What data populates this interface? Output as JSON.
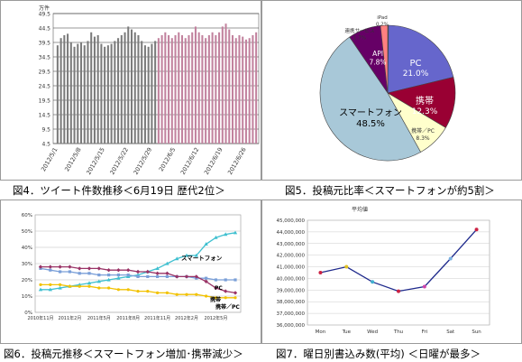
{
  "captions": [
    "図4．ツイート件数推移＜6月19日 歴代2位＞",
    "図5．投稿元比率＜スマートフォンが約5割＞",
    "図6．投稿元推移＜スマートフォン増加･携帯減少＞",
    "図7．曜日別書込み数(平均) ＜日曜が最多＞"
  ],
  "chart_data": [
    {
      "type": "bar",
      "title": "",
      "ylabel": "万件",
      "ylim": [
        4.5,
        49.5
      ],
      "yticks": [
        "49.5",
        "44.5",
        "39.5",
        "34.5",
        "29.5",
        "24.5",
        "19.5",
        "14.5",
        "9.5",
        "4.5"
      ],
      "xtick_labels": [
        "2012/5/1",
        "2012/5/8",
        "2012/5/15",
        "2012/5/22",
        "2012/5/29",
        "2012/6/5",
        "2012/6/12",
        "2012/6/19",
        "2012/6/26"
      ],
      "grid": true,
      "series": [
        {
          "color": "#7b7b7b",
          "values": [
            38.5,
            41,
            42,
            42.5,
            39.5,
            38,
            39,
            39.5,
            38.5,
            40,
            43,
            41.5,
            42,
            39,
            38,
            38.5,
            39,
            40,
            41,
            42,
            43,
            45,
            44,
            43,
            42,
            40,
            38.5,
            38,
            39,
            40
          ]
        },
        {
          "color": "#c2829e",
          "values": [
            41,
            42,
            43,
            42,
            41,
            42,
            43,
            42,
            41,
            42,
            43,
            45,
            43,
            42,
            41,
            42,
            43,
            42,
            43,
            45,
            46,
            44,
            42,
            41,
            42,
            41.5,
            40.5,
            41,
            42,
            43
          ]
        }
      ]
    },
    {
      "type": "pie",
      "slices": [
        {
          "label": "iPad",
          "value_label": "0.2%",
          "value": 0.2,
          "color": "#8a8a8a"
        },
        {
          "label": "PC",
          "value_label": "21.0%",
          "value": 21.0,
          "color": "#6666cc"
        },
        {
          "label": "携帯",
          "value_label": "12.3%",
          "value": 12.3,
          "color": "#990033"
        },
        {
          "label": "携帯／PC",
          "value_label": "8.3%",
          "value": 8.3,
          "color": "#ffffcc"
        },
        {
          "label": "スマートフォン",
          "value_label": "48.5%",
          "value": 48.5,
          "color": "#a8c8d8"
        },
        {
          "label": "API",
          "value_label": "7.8%",
          "value": 7.8,
          "color": "#660066"
        },
        {
          "label": "連携サービス",
          "value_label": "1.7%",
          "value": 1.7,
          "color": "#ff8080"
        }
      ]
    },
    {
      "type": "line",
      "ylim": [
        0,
        60
      ],
      "yticks": [
        "0%",
        "10%",
        "20%",
        "30%",
        "40%",
        "50%",
        "60%"
      ],
      "xtick_labels": [
        "2010年11月",
        "2011年2月",
        "2011年5月",
        "2011年8月",
        "2011年11月",
        "2012年2月",
        "2012年5月"
      ],
      "series": [
        {
          "name": "スマートフォン",
          "color": "#40c0d0",
          "marker": "triangle",
          "values": [
            14,
            14,
            15,
            16,
            17,
            18,
            19,
            20,
            21,
            22,
            23,
            25,
            27,
            30,
            33,
            35,
            35,
            42,
            46,
            48,
            49
          ]
        },
        {
          "name": "PC",
          "color": "#7a9fd8",
          "marker": "square",
          "values": [
            27,
            26,
            25,
            25,
            24,
            24,
            23,
            23,
            23,
            23,
            22,
            22,
            22,
            22,
            22,
            22,
            21,
            21,
            20,
            20,
            20
          ]
        },
        {
          "name": "携帯",
          "color": "#993366",
          "marker": "diamond",
          "values": [
            28,
            28,
            28,
            28,
            27,
            27,
            27,
            26,
            26,
            26,
            25,
            25,
            24,
            24,
            22,
            22,
            22,
            19,
            15,
            13,
            12
          ]
        },
        {
          "name": "携帯／PC",
          "color": "#f2c200",
          "marker": "circle",
          "values": [
            17,
            17,
            17,
            16,
            16,
            16,
            15,
            15,
            14,
            14,
            13,
            13,
            12,
            12,
            11,
            11,
            11,
            10,
            9,
            9,
            9
          ]
        }
      ]
    },
    {
      "type": "line",
      "title": "平均値",
      "ylim": [
        36000000,
        45000000
      ],
      "yticks": [
        "45,000,000",
        "44,000,000",
        "43,000,000",
        "42,000,000",
        "41,000,000",
        "40,000,000",
        "39,000,000",
        "38,000,000",
        "37,000,000",
        "36,000,000"
      ],
      "categories": [
        "Mon",
        "Tue",
        "Wed",
        "Thu",
        "Fri",
        "Sat",
        "Sun"
      ],
      "series": [
        {
          "color": "#1f2a8c",
          "values": [
            40500000,
            41000000,
            39700000,
            38900000,
            39300000,
            41700000,
            44200000
          ]
        }
      ],
      "marker_colors": [
        "#cc2244",
        "#e0c020",
        "#40b0d0",
        "#cc2244",
        "#cc44aa",
        "#7ab0e0",
        "#cc2244"
      ]
    }
  ]
}
